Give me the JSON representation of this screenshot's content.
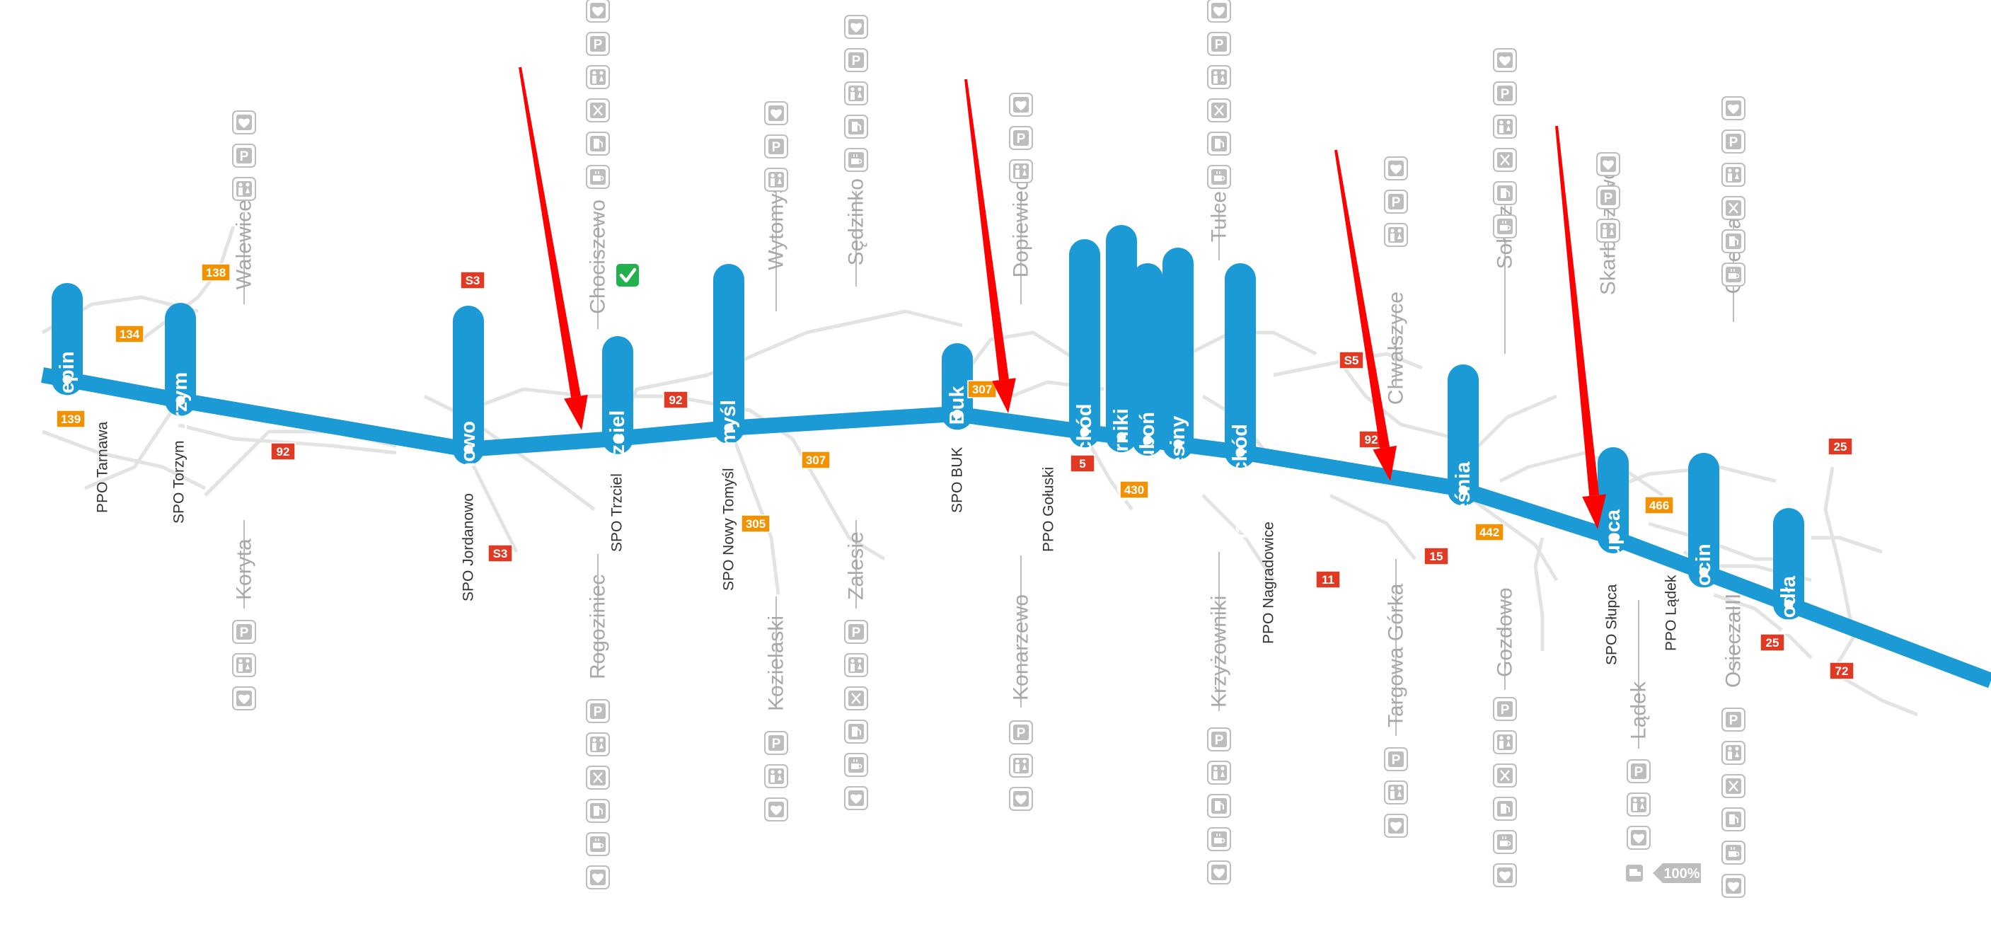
{
  "colors": {
    "route": "#1b9ad6",
    "road": "#e3e3e3",
    "mop": "#bdbdbd",
    "mop_text": "#a8a8a8",
    "spo_text": "#333333",
    "badge_red": "#e03a24",
    "badge_orange": "#f39200",
    "arrow": "#ff0000",
    "check": "#22b14c"
  },
  "junctions": [
    {
      "name": "Rzepin"
    },
    {
      "name": "Torzym"
    },
    {
      "name": "Jordanowo"
    },
    {
      "name": "Trzciel"
    },
    {
      "name": "Nowy Tomyśl"
    },
    {
      "name": "Buk"
    },
    {
      "name": "Poznań Zachód"
    },
    {
      "name": "Poznań Komorniki"
    },
    {
      "name": "Poznań Luboń"
    },
    {
      "name": "Poznań Krzesiny"
    },
    {
      "name": "Poznań Wschód"
    },
    {
      "name": "Września"
    },
    {
      "name": "Słupca"
    },
    {
      "name": "Sługocin"
    },
    {
      "name": "Modła"
    }
  ],
  "mops": [
    {
      "name": "Walewice",
      "icons": [
        "heart-icon",
        "parking-icon",
        "toilet-icon"
      ]
    },
    {
      "name": "Koryta",
      "icons": [
        "parking-icon",
        "toilet-icon",
        "heart-icon"
      ]
    },
    {
      "name": "Chociszewo",
      "icons": [
        "heart-icon",
        "parking-icon",
        "toilet-icon",
        "restaurant-icon",
        "fuel-icon",
        "cafe-icon"
      ]
    },
    {
      "name": "Rogoziniec",
      "icons": [
        "parking-icon",
        "toilet-icon",
        "restaurant-icon",
        "fuel-icon",
        "cafe-icon",
        "heart-icon"
      ]
    },
    {
      "name": "Wytomyśl",
      "icons": [
        "heart-icon",
        "parking-icon",
        "toilet-icon"
      ]
    },
    {
      "name": "Kozielaski",
      "icons": [
        "parking-icon",
        "toilet-icon",
        "heart-icon"
      ]
    },
    {
      "name": "Sędzinko",
      "icons": [
        "heart-icon",
        "parking-icon",
        "toilet-icon",
        "fuel-icon",
        "cafe-icon"
      ]
    },
    {
      "name": "Zalesie",
      "icons": [
        "parking-icon",
        "toilet-icon",
        "restaurant-icon",
        "fuel-icon",
        "cafe-icon",
        "heart-icon"
      ]
    },
    {
      "name": "Dopiewiec",
      "icons": [
        "heart-icon",
        "parking-icon",
        "toilet-icon"
      ]
    },
    {
      "name": "Konarzewo",
      "icons": [
        "parking-icon",
        "toilet-icon",
        "heart-icon"
      ]
    },
    {
      "name": "Tulce",
      "icons": [
        "heart-icon",
        "parking-icon",
        "toilet-icon",
        "restaurant-icon",
        "fuel-icon",
        "cafe-icon"
      ]
    },
    {
      "name": "Krzyżowniki",
      "icons": [
        "parking-icon",
        "toilet-icon",
        "fuel-icon",
        "cafe-icon",
        "heart-icon"
      ]
    },
    {
      "name": "Chwałszyce",
      "icons": [
        "heart-icon",
        "parking-icon",
        "toilet-icon"
      ]
    },
    {
      "name": "Targowa Górka",
      "icons": [
        "parking-icon",
        "toilet-icon",
        "heart-icon"
      ]
    },
    {
      "name": "Sołeczno",
      "icons": [
        "heart-icon",
        "parking-icon",
        "toilet-icon",
        "restaurant-icon",
        "fuel-icon",
        "cafe-icon"
      ]
    },
    {
      "name": "Gozdowo",
      "icons": [
        "parking-icon",
        "toilet-icon",
        "restaurant-icon",
        "fuel-icon",
        "cafe-icon",
        "heart-icon"
      ]
    },
    {
      "name": "Skarboszewo",
      "icons": [
        "heart-icon",
        "parking-icon",
        "toilet-icon"
      ]
    },
    {
      "name": "Lądek",
      "icons": [
        "parking-icon",
        "toilet-icon",
        "heart-icon"
      ]
    },
    {
      "name": "Osiecza II",
      "icons": [
        "heart-icon",
        "parking-icon",
        "toilet-icon",
        "restaurant-icon",
        "fuel-icon",
        "cafe-icon"
      ]
    },
    {
      "name": "OsieczaIII",
      "icons": [
        "parking-icon",
        "toilet-icon",
        "restaurant-icon",
        "fuel-icon",
        "cafe-icon",
        "heart-icon"
      ]
    }
  ],
  "spo": [
    {
      "name": "PPO Tarnawa"
    },
    {
      "name": "SPO Torzym"
    },
    {
      "name": "SPO Jordanowo"
    },
    {
      "name": "SPO Trzciel"
    },
    {
      "name": "SPO Nowy Tomyśl"
    },
    {
      "name": "SPO BUK"
    },
    {
      "name": "PPO Gołuski"
    },
    {
      "name": "PPO Nagradowice"
    },
    {
      "name": "SPO Słupca"
    },
    {
      "name": "PPO Lądek"
    }
  ],
  "badges": [
    {
      "text": "134",
      "color": "orange"
    },
    {
      "text": "139",
      "color": "orange"
    },
    {
      "text": "138",
      "color": "orange"
    },
    {
      "text": "92",
      "color": "red"
    },
    {
      "text": "S3",
      "color": "red"
    },
    {
      "text": "S3",
      "color": "red"
    },
    {
      "text": "92",
      "color": "red"
    },
    {
      "text": "307",
      "color": "orange"
    },
    {
      "text": "305",
      "color": "orange"
    },
    {
      "text": "307",
      "color": "orange"
    },
    {
      "text": "5",
      "color": "red"
    },
    {
      "text": "430",
      "color": "orange"
    },
    {
      "text": "S5",
      "color": "red"
    },
    {
      "text": "92",
      "color": "red"
    },
    {
      "text": "11",
      "color": "red"
    },
    {
      "text": "15",
      "color": "red"
    },
    {
      "text": "442",
      "color": "orange"
    },
    {
      "text": "466",
      "color": "orange"
    },
    {
      "text": "25",
      "color": "red"
    },
    {
      "text": "25",
      "color": "red"
    },
    {
      "text": "72",
      "color": "red"
    }
  ],
  "misc": {
    "percent_label": "100%",
    "check_icon": "check-icon",
    "truck_icon": "truck-icon"
  }
}
